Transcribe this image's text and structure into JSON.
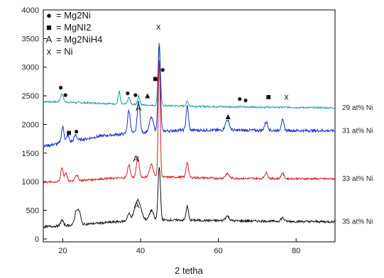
{
  "chart_data": {
    "type": "line",
    "title": "",
    "xlabel": "2 tetha",
    "ylabel": "",
    "xlim": [
      15,
      90
    ],
    "ylim": [
      -50,
      4000
    ],
    "x_ticks": [
      20,
      40,
      60,
      80
    ],
    "y_ticks": [
      0,
      500,
      1000,
      1500,
      2000,
      2500,
      3000,
      3500,
      4000
    ],
    "grid": false,
    "legend": {
      "placement": "top-left",
      "entries": [
        {
          "symbol": "●",
          "label": "= Mg2Ni"
        },
        {
          "symbol": "■",
          "label": "= MgNI2"
        },
        {
          "symbol": "A",
          "label": "= Mg2NiH4"
        },
        {
          "symbol": "x",
          "label": "= Ni"
        }
      ]
    },
    "series": [
      {
        "name": "29 at% Ni",
        "color": "#1f9e9e",
        "baseline": [
          [
            15,
            2400
          ],
          [
            30,
            2370
          ],
          [
            45,
            2330
          ],
          [
            60,
            2310
          ],
          [
            90,
            2290
          ]
        ],
        "noise": 15,
        "peaks": [
          [
            19.8,
            150,
            0.35
          ],
          [
            34.5,
            220,
            0.25
          ],
          [
            37,
            120,
            0.3
          ],
          [
            39.5,
            150,
            0.3
          ],
          [
            44.8,
            1100,
            0.3
          ],
          [
            52,
            80,
            0.3
          ]
        ]
      },
      {
        "name": "31 at% Ni",
        "color": "#1a2ecc",
        "baseline": [
          [
            15,
            1620
          ],
          [
            22,
            1700
          ],
          [
            30,
            1800
          ],
          [
            40,
            1860
          ],
          [
            50,
            1900
          ],
          [
            60,
            1900
          ],
          [
            90,
            1890
          ]
        ],
        "noise": 25,
        "peaks": [
          [
            20,
            280,
            0.35
          ],
          [
            21.3,
            120,
            0.3
          ],
          [
            23.3,
            100,
            0.35
          ],
          [
            37,
            400,
            0.35
          ],
          [
            39.5,
            550,
            0.35
          ],
          [
            42.8,
            250,
            0.5
          ],
          [
            44.8,
            1500,
            0.3
          ],
          [
            52,
            420,
            0.3
          ],
          [
            62.3,
            180,
            0.5
          ],
          [
            72.3,
            150,
            0.4
          ],
          [
            76.5,
            180,
            0.35
          ]
        ]
      },
      {
        "name": "33 at% Ni",
        "color": "#d62020",
        "baseline": [
          [
            15,
            990
          ],
          [
            22,
            1010
          ],
          [
            30,
            1050
          ],
          [
            40,
            1080
          ],
          [
            50,
            1080
          ],
          [
            60,
            1060
          ],
          [
            90,
            1050
          ]
        ],
        "noise": 18,
        "peaks": [
          [
            19.8,
            250,
            0.3
          ],
          [
            20.8,
            150,
            0.3
          ],
          [
            23.5,
            100,
            0.4
          ],
          [
            37,
            220,
            0.35
          ],
          [
            39.3,
            350,
            0.35
          ],
          [
            42.8,
            220,
            0.5
          ],
          [
            44.8,
            2050,
            0.25
          ],
          [
            52,
            270,
            0.3
          ],
          [
            62.3,
            80,
            0.5
          ],
          [
            72.3,
            100,
            0.4
          ],
          [
            76.5,
            100,
            0.35
          ]
        ]
      },
      {
        "name": "35 at% Ni",
        "color": "#111111",
        "baseline": [
          [
            15,
            210
          ],
          [
            22,
            240
          ],
          [
            30,
            280
          ],
          [
            40,
            330
          ],
          [
            50,
            330
          ],
          [
            60,
            320
          ],
          [
            90,
            300
          ]
        ],
        "noise": 20,
        "peaks": [
          [
            19.8,
            100,
            0.35
          ],
          [
            23.5,
            250,
            0.4
          ],
          [
            24.3,
            200,
            0.35
          ],
          [
            37,
            120,
            0.4
          ],
          [
            39.3,
            350,
            0.8
          ],
          [
            42.8,
            170,
            0.5
          ],
          [
            44.8,
            950,
            0.3
          ],
          [
            52,
            240,
            0.3
          ],
          [
            62.3,
            80,
            0.5
          ],
          [
            76.5,
            60,
            0.4
          ]
        ]
      }
    ],
    "annotations": [
      {
        "symbol": "●",
        "x": 19.5,
        "y": 2650
      },
      {
        "symbol": "●",
        "x": 20.7,
        "y": 2520
      },
      {
        "symbol": "●",
        "x": 36.7,
        "y": 2550
      },
      {
        "symbol": "●",
        "x": 38.7,
        "y": 2520
      },
      {
        "symbol": "▲",
        "x": 41.8,
        "y": 2510
      },
      {
        "symbol": "x",
        "x": 44.6,
        "y": 3710
      },
      {
        "symbol": "■",
        "x": 43.8,
        "y": 2800
      },
      {
        "symbol": "●",
        "x": 45.7,
        "y": 2960
      },
      {
        "symbol": "●",
        "x": 65.5,
        "y": 2450
      },
      {
        "symbol": "●",
        "x": 67,
        "y": 2430
      },
      {
        "symbol": "■",
        "x": 72.9,
        "y": 2480
      },
      {
        "symbol": "x",
        "x": 77.5,
        "y": 2480
      },
      {
        "symbol": "A",
        "x": 39.5,
        "y": 2290
      },
      {
        "symbol": "■",
        "x": 21.6,
        "y": 1860
      },
      {
        "symbol": "●",
        "x": 23.5,
        "y": 1880
      },
      {
        "symbol": "▲",
        "x": 62.5,
        "y": 2140
      },
      {
        "symbol": "A",
        "x": 38.8,
        "y": 1400
      },
      {
        "symbol": "A",
        "x": 39,
        "y": 590
      }
    ]
  }
}
